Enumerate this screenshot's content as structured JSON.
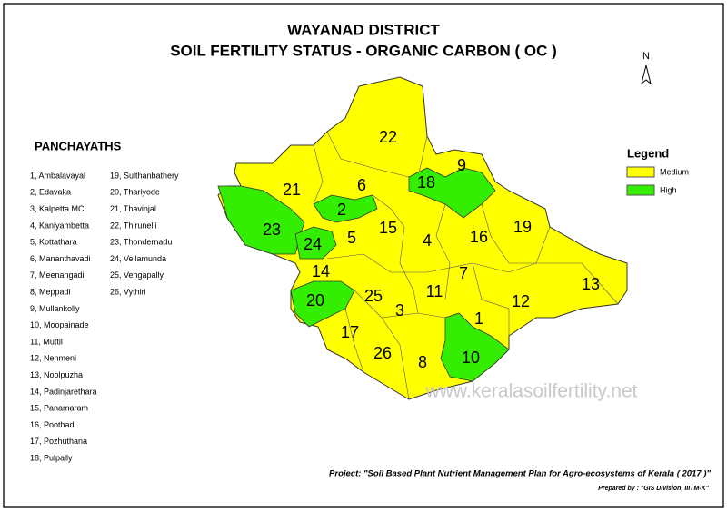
{
  "title": [
    "WAYANAD DISTRICT",
    "SOIL FERTILITY STATUS - ORGANIC CARBON ( OC )"
  ],
  "north": "N",
  "panchayaths_heading": "PANCHAYATHS",
  "panchayaths": [
    "1, Ambalavayal",
    "2, Edavaka",
    "3, Kalpetta MC",
    "4, Kaniyambetta",
    "5, Kottathara",
    "6, Mananthavadi",
    "7, Meenangadi",
    "8, Meppadi",
    "9, Mullankolly",
    "10, Moopainade",
    "11, Muttil",
    "12, Nenmeni",
    "13, Noolpuzha",
    "14, Padinjarethara",
    "15, Panamaram",
    "16, Poothadi",
    "17, Pozhuthana",
    "18, Pulpally",
    "19, Sulthanbathery",
    "20, Thariyode",
    "21, Thavinjal",
    "22, Thirunelli",
    "23, Thondernadu",
    "24, Vellamunda",
    "25, Vengapally",
    "26, Vythiri"
  ],
  "legend": {
    "title": "Legend",
    "items": [
      {
        "name": "Medium",
        "color": "#ffff00"
      },
      {
        "name": "High",
        "color": "#33ee00"
      }
    ]
  },
  "regions": [
    {
      "label": "22",
      "class": "Medium"
    },
    {
      "label": "9",
      "class": "Medium"
    },
    {
      "label": "18",
      "class": "High"
    },
    {
      "label": "21",
      "class": "Medium"
    },
    {
      "label": "6",
      "class": "Medium"
    },
    {
      "label": "2",
      "class": "High"
    },
    {
      "label": "23",
      "class": "High"
    },
    {
      "label": "24",
      "class": "High"
    },
    {
      "label": "5",
      "class": "Medium"
    },
    {
      "label": "15",
      "class": "Medium"
    },
    {
      "label": "4",
      "class": "Medium"
    },
    {
      "label": "16",
      "class": "Medium"
    },
    {
      "label": "19",
      "class": "Medium"
    },
    {
      "label": "7",
      "class": "Medium"
    },
    {
      "label": "13",
      "class": "Medium"
    },
    {
      "label": "12",
      "class": "Medium"
    },
    {
      "label": "14",
      "class": "Medium"
    },
    {
      "label": "20",
      "class": "High"
    },
    {
      "label": "25",
      "class": "Medium"
    },
    {
      "label": "3",
      "class": "Medium"
    },
    {
      "label": "11",
      "class": "Medium"
    },
    {
      "label": "1",
      "class": "Medium"
    },
    {
      "label": "17",
      "class": "Medium"
    },
    {
      "label": "26",
      "class": "Medium"
    },
    {
      "label": "8",
      "class": "Medium"
    },
    {
      "label": "10",
      "class": "High"
    }
  ],
  "watermark": "www.keralasoilfertility.net",
  "project": "Project: \"Soil Based Plant Nutrient Management Plan for Agro-ecosystems of Kerala ( 2017 )\"",
  "prepared_by": "Prepared by : \"GIS Division, IIITM-K\""
}
